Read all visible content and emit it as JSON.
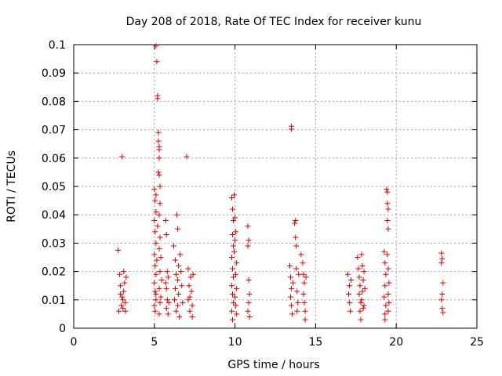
{
  "chart_data": {
    "type": "scatter",
    "title": "Day 208 of 2018, Rate Of TEC Index for receiver kunu",
    "xlabel": "GPS time / hours",
    "ylabel": "ROTI / TECUs",
    "xlim": [
      0,
      25
    ],
    "ylim": [
      0,
      0.1
    ],
    "xticks": [
      0,
      5,
      10,
      15,
      20,
      25
    ],
    "yticks": [
      0,
      0.01,
      0.02,
      0.03,
      0.04,
      0.05,
      0.06,
      0.07,
      0.08,
      0.09,
      0.1
    ],
    "xtick_labels": [
      "0",
      "5",
      "10",
      "15",
      "20",
      "25"
    ],
    "ytick_labels": [
      "0",
      "0.01",
      "0.02",
      "0.03",
      "0.04",
      "0.05",
      "0.06",
      "0.07",
      "0.08",
      "0.09",
      "0.1"
    ],
    "grid": true,
    "marker": "plus",
    "color": "#e00000",
    "points": [
      [
        2.75,
        0.0275
      ],
      [
        2.85,
        0.019
      ],
      [
        2.9,
        0.012
      ],
      [
        2.95,
        0.008
      ],
      [
        2.8,
        0.006
      ],
      [
        2.9,
        0.015
      ],
      [
        3.0,
        0.0605
      ],
      [
        3.0,
        0.011
      ],
      [
        3.05,
        0.007
      ],
      [
        3.1,
        0.02
      ],
      [
        3.15,
        0.016
      ],
      [
        3.2,
        0.009
      ],
      [
        3.1,
        0.013
      ],
      [
        3.25,
        0.018
      ],
      [
        3.2,
        0.006
      ],
      [
        3.05,
        0.01
      ],
      [
        5.0,
        0.049
      ],
      [
        5.05,
        0.045
      ],
      [
        5.1,
        0.041
      ],
      [
        5.0,
        0.038
      ],
      [
        5.05,
        0.034
      ],
      [
        5.1,
        0.03
      ],
      [
        5.0,
        0.026
      ],
      [
        5.05,
        0.022
      ],
      [
        5.1,
        0.019
      ],
      [
        5.0,
        0.016
      ],
      [
        5.05,
        0.013
      ],
      [
        5.1,
        0.01
      ],
      [
        5.0,
        0.008
      ],
      [
        5.05,
        0.006
      ],
      [
        5.1,
        0.012
      ],
      [
        5.15,
        0.024
      ],
      [
        5.2,
        0.036
      ],
      [
        5.1,
        0.047
      ],
      [
        5.1,
        0.0995
      ],
      [
        5.15,
        0.094
      ],
      [
        5.2,
        0.082
      ],
      [
        5.2,
        0.081
      ],
      [
        5.25,
        0.069
      ],
      [
        5.25,
        0.066
      ],
      [
        5.3,
        0.064
      ],
      [
        5.3,
        0.063
      ],
      [
        5.3,
        0.06
      ],
      [
        5.25,
        0.055
      ],
      [
        5.3,
        0.054
      ],
      [
        5.35,
        0.05
      ],
      [
        5.35,
        0.044
      ],
      [
        5.3,
        0.04
      ],
      [
        5.35,
        0.032
      ],
      [
        5.3,
        0.028
      ],
      [
        5.35,
        0.02
      ],
      [
        5.3,
        0.014
      ],
      [
        5.35,
        0.009
      ],
      [
        5.3,
        0.005
      ],
      [
        5.4,
        0.011
      ],
      [
        5.45,
        0.017
      ],
      [
        5.4,
        0.025
      ],
      [
        5.7,
        0.038
      ],
      [
        5.75,
        0.033
      ],
      [
        5.8,
        0.02
      ],
      [
        5.75,
        0.014
      ],
      [
        5.8,
        0.01
      ],
      [
        5.75,
        0.007
      ],
      [
        5.85,
        0.018
      ],
      [
        5.9,
        0.009
      ],
      [
        5.85,
        0.005
      ],
      [
        5.7,
        0.016
      ],
      [
        6.2,
        0.029
      ],
      [
        6.3,
        0.024
      ],
      [
        6.35,
        0.019
      ],
      [
        6.3,
        0.014
      ],
      [
        6.25,
        0.01
      ],
      [
        6.35,
        0.006
      ],
      [
        6.4,
        0.04
      ],
      [
        6.45,
        0.035
      ],
      [
        6.5,
        0.022
      ],
      [
        6.45,
        0.017
      ],
      [
        6.5,
        0.012
      ],
      [
        6.45,
        0.008
      ],
      [
        6.55,
        0.004
      ],
      [
        6.6,
        0.026
      ],
      [
        6.65,
        0.02
      ],
      [
        6.7,
        0.015
      ],
      [
        6.75,
        0.009
      ],
      [
        7.0,
        0.0605
      ],
      [
        7.1,
        0.021
      ],
      [
        7.15,
        0.015
      ],
      [
        7.1,
        0.01
      ],
      [
        7.2,
        0.006
      ],
      [
        7.25,
        0.018
      ],
      [
        7.3,
        0.013
      ],
      [
        7.35,
        0.008
      ],
      [
        7.4,
        0.019
      ],
      [
        7.35,
        0.004
      ],
      [
        7.2,
        0.011
      ],
      [
        9.8,
        0.046
      ],
      [
        9.85,
        0.042
      ],
      [
        9.9,
        0.038
      ],
      [
        9.85,
        0.033
      ],
      [
        9.9,
        0.029
      ],
      [
        9.8,
        0.025
      ],
      [
        9.85,
        0.021
      ],
      [
        9.9,
        0.018
      ],
      [
        9.8,
        0.015
      ],
      [
        9.85,
        0.012
      ],
      [
        9.9,
        0.009
      ],
      [
        9.8,
        0.006
      ],
      [
        9.85,
        0.003
      ],
      [
        9.95,
        0.047
      ],
      [
        10.0,
        0.039
      ],
      [
        10.05,
        0.034
      ],
      [
        10.0,
        0.031
      ],
      [
        10.1,
        0.023
      ],
      [
        10.05,
        0.019
      ],
      [
        10.1,
        0.014
      ],
      [
        10.0,
        0.011
      ],
      [
        10.05,
        0.008
      ],
      [
        10.1,
        0.005
      ],
      [
        9.95,
        0.027
      ],
      [
        10.8,
        0.036
      ],
      [
        10.85,
        0.031
      ],
      [
        10.8,
        0.029
      ],
      [
        10.85,
        0.017
      ],
      [
        10.9,
        0.012
      ],
      [
        10.85,
        0.009
      ],
      [
        10.8,
        0.006
      ],
      [
        10.9,
        0.004
      ],
      [
        13.5,
        0.0712
      ],
      [
        13.5,
        0.0702
      ],
      [
        13.4,
        0.022
      ],
      [
        13.45,
        0.018
      ],
      [
        13.5,
        0.014
      ],
      [
        13.45,
        0.011
      ],
      [
        13.5,
        0.008
      ],
      [
        13.55,
        0.005
      ],
      [
        13.6,
        0.016
      ],
      [
        13.7,
        0.037
      ],
      [
        13.75,
        0.038
      ],
      [
        13.75,
        0.032
      ],
      [
        13.8,
        0.029
      ],
      [
        13.8,
        0.021
      ],
      [
        13.85,
        0.013
      ],
      [
        13.9,
        0.009
      ],
      [
        13.85,
        0.006
      ],
      [
        13.95,
        0.019
      ],
      [
        14.1,
        0.026
      ],
      [
        14.2,
        0.023
      ],
      [
        14.25,
        0.019
      ],
      [
        14.3,
        0.016
      ],
      [
        14.25,
        0.012
      ],
      [
        14.3,
        0.009
      ],
      [
        14.35,
        0.006
      ],
      [
        14.4,
        0.018
      ],
      [
        14.35,
        0.003
      ],
      [
        17.0,
        0.019
      ],
      [
        17.1,
        0.015
      ],
      [
        17.05,
        0.012
      ],
      [
        17.1,
        0.009
      ],
      [
        17.15,
        0.006
      ],
      [
        17.2,
        0.017
      ],
      [
        17.6,
        0.025
      ],
      [
        17.65,
        0.021
      ],
      [
        17.7,
        0.018
      ],
      [
        17.75,
        0.015
      ],
      [
        17.7,
        0.012
      ],
      [
        17.8,
        0.009
      ],
      [
        17.75,
        0.006
      ],
      [
        17.8,
        0.003
      ],
      [
        17.85,
        0.026
      ],
      [
        17.9,
        0.022
      ],
      [
        17.95,
        0.017
      ],
      [
        17.9,
        0.013
      ],
      [
        17.85,
        0.01
      ],
      [
        17.95,
        0.007
      ],
      [
        18.0,
        0.02
      ],
      [
        18.05,
        0.014
      ],
      [
        18.0,
        0.008
      ],
      [
        19.25,
        0.027
      ],
      [
        19.3,
        0.023
      ],
      [
        19.35,
        0.019
      ],
      [
        19.3,
        0.015
      ],
      [
        19.25,
        0.011
      ],
      [
        19.35,
        0.008
      ],
      [
        19.3,
        0.005
      ],
      [
        19.3,
        0.003
      ],
      [
        19.4,
        0.049
      ],
      [
        19.45,
        0.048
      ],
      [
        19.45,
        0.044
      ],
      [
        19.5,
        0.042
      ],
      [
        19.45,
        0.038
      ],
      [
        19.5,
        0.035
      ],
      [
        19.45,
        0.026
      ],
      [
        19.5,
        0.021
      ],
      [
        19.55,
        0.016
      ],
      [
        19.5,
        0.012
      ],
      [
        19.55,
        0.009
      ],
      [
        19.5,
        0.006
      ],
      [
        22.8,
        0.0265
      ],
      [
        22.85,
        0.0245
      ],
      [
        22.8,
        0.023
      ],
      [
        22.9,
        0.016
      ],
      [
        22.85,
        0.012
      ],
      [
        22.8,
        0.01
      ],
      [
        22.85,
        0.007
      ],
      [
        22.9,
        0.0055
      ]
    ]
  }
}
